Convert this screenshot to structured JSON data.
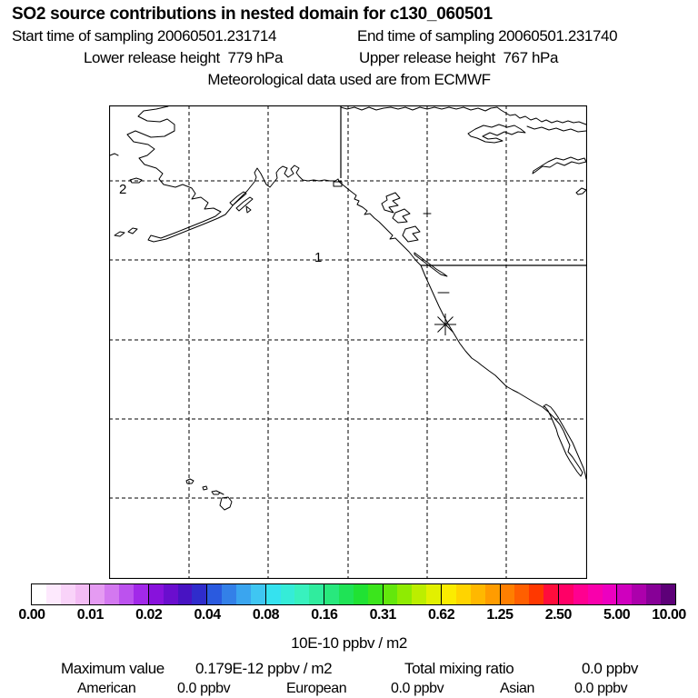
{
  "figure": {
    "title": "SO2 source contributions in nested domain for c130_060501",
    "sampling": {
      "start": "Start time of sampling 20060501.231714",
      "end": "End time of sampling 20060501.231740"
    },
    "release": {
      "lower": "Lower release height  779 hPa",
      "upper": "Upper release height  767 hPa"
    },
    "met_source": "Meteorological data used are from ECMWF"
  },
  "map": {
    "grid_label_upper_left": "2",
    "grid_label_center": "1",
    "marker": "star"
  },
  "colorbar": {
    "unit_label": "10E-10 ppbv / m2",
    "tick_labels": [
      "0.00",
      "0.01",
      "0.02",
      "0.04",
      "0.08",
      "0.16",
      "0.31",
      "0.62",
      "1.25",
      "2.50",
      "5.00",
      "10.00"
    ],
    "cell_colors": [
      "#FFFFFF",
      "#FDE9FD",
      "#F9D3F9",
      "#F3BCF4",
      "#E59BF2",
      "#D378F0",
      "#BC52EE",
      "#A229E9",
      "#8812DC",
      "#6A0ECE",
      "#4813C2",
      "#2F2CCC",
      "#2A5ADF",
      "#3380E8",
      "#3AA5EF",
      "#3FC6F2",
      "#35E2EF",
      "#35ECD8",
      "#38F1BE",
      "#30EC9E",
      "#28E87D",
      "#1FE356",
      "#20E233",
      "#3BE51C",
      "#63E70C",
      "#8FEB02",
      "#BCEE00",
      "#E2F000",
      "#FBEC00",
      "#FFD400",
      "#FFB800",
      "#FF9C00",
      "#FF7F00",
      "#FF5F00",
      "#FF3800",
      "#FF0D3C",
      "#FF0066",
      "#FF0090",
      "#F900AC",
      "#EC00C0",
      "#CF00BE",
      "#AC00AC",
      "#870097",
      "#5D0078"
    ]
  },
  "footer": {
    "max_label": "Maximum value",
    "max_value": "0.179E-12 ppbv / m2",
    "total_label": "Total mixing ratio",
    "total_value": "0.0 ppbv",
    "regions": [
      {
        "name": "American",
        "value": "0.0 ppbv"
      },
      {
        "name": "European",
        "value": "0.0 ppbv"
      },
      {
        "name": "Asian",
        "value": "0.0 ppbv"
      }
    ]
  },
  "chart_data": {
    "type": "heatmap",
    "title": "SO2 source contributions in nested domain for c130_060501",
    "subtitle": "Meteorological data used are from ECMWF",
    "colorbar_levels": [
      0.0,
      0.01,
      0.02,
      0.04,
      0.08,
      0.16,
      0.31,
      0.62,
      1.25,
      2.5,
      5.0,
      10.0
    ],
    "colorbar_units": "10E-10 ppbv / m2",
    "sampling_start": "20060501.231714",
    "sampling_end": "20060501.231740",
    "lower_release_height_hPa": 779,
    "upper_release_height_hPa": 767,
    "maximum_value": "0.179E-12 ppbv / m2",
    "total_mixing_ratio_ppbv": 0.0,
    "series": [
      {
        "name": "American",
        "values": [
          0.0
        ]
      },
      {
        "name": "European",
        "values": [
          0.0
        ]
      },
      {
        "name": "Asian",
        "values": [
          0.0
        ]
      }
    ],
    "legend_position": "bottom",
    "grid": true,
    "notes": "Geographic domain: NE Pacific with Alaska, west coast of North America, Baja California and Hawaii; star marker at aircraft sampling location; contribution field everywhere below lowest color level (map area blank)."
  }
}
